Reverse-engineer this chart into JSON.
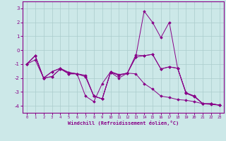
{
  "title": "",
  "xlabel": "Windchill (Refroidissement éolien,°C)",
  "ylabel": "",
  "xlim": [
    -0.5,
    23.5
  ],
  "ylim": [
    -4.5,
    3.5
  ],
  "yticks": [
    -4,
    -3,
    -2,
    -1,
    0,
    1,
    2,
    3
  ],
  "xticks": [
    0,
    1,
    2,
    3,
    4,
    5,
    6,
    7,
    8,
    9,
    10,
    11,
    12,
    13,
    14,
    15,
    16,
    17,
    18,
    19,
    20,
    21,
    22,
    23
  ],
  "background_color": "#cce8e8",
  "grid_color": "#aacccc",
  "line_color": "#880088",
  "lines": [
    [
      -1.0,
      -0.4,
      -2.0,
      -1.55,
      -1.3,
      -1.7,
      -1.7,
      -1.9,
      -3.3,
      -3.5,
      -1.6,
      -1.8,
      -1.65,
      -0.35,
      -0.4,
      -0.3,
      -1.35,
      -1.2,
      -1.3,
      -3.05,
      -3.3,
      -3.85,
      -3.85,
      -3.95
    ],
    [
      -1.0,
      -0.4,
      -2.0,
      -1.9,
      -1.35,
      -1.6,
      -1.7,
      -3.3,
      -3.7,
      -2.4,
      -1.55,
      -1.75,
      -1.65,
      -0.5,
      2.8,
      2.0,
      0.9,
      2.0,
      -1.3,
      -3.1,
      -3.3,
      -3.85,
      -3.85,
      -3.95
    ],
    [
      -1.0,
      -0.4,
      -2.0,
      -1.9,
      -1.35,
      -1.7,
      -1.7,
      -1.9,
      -3.3,
      -3.5,
      -1.6,
      -2.0,
      -1.65,
      -0.5,
      -0.4,
      -0.3,
      -1.35,
      -1.2,
      -1.3,
      -3.1,
      -3.35,
      -3.85,
      -3.85,
      -3.95
    ],
    [
      -1.0,
      -0.7,
      -2.0,
      -1.55,
      -1.3,
      -1.6,
      -1.7,
      -1.8,
      -3.3,
      -3.5,
      -1.55,
      -1.8,
      -1.65,
      -1.7,
      -2.4,
      -2.8,
      -3.3,
      -3.4,
      -3.55,
      -3.6,
      -3.7,
      -3.85,
      -3.9,
      -3.95
    ]
  ]
}
